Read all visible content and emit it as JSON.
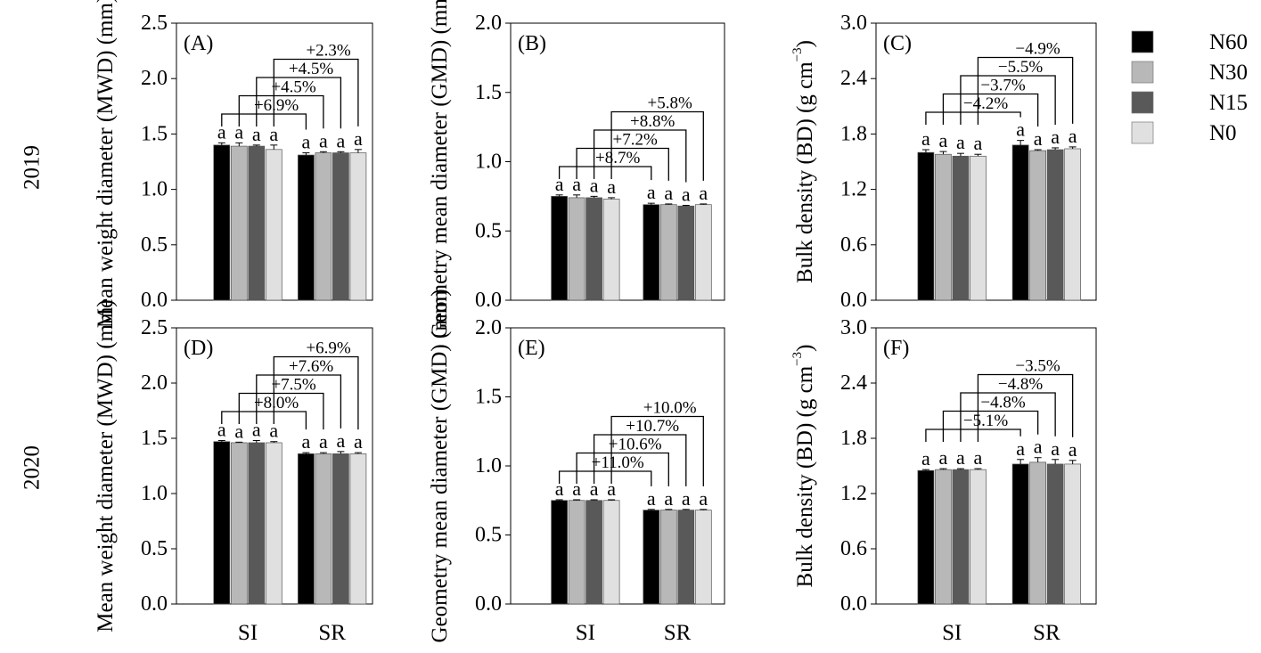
{
  "figure": {
    "row_labels": [
      "2019",
      "2020"
    ],
    "legend": [
      {
        "name": "N60",
        "color": "#000000"
      },
      {
        "name": "N30",
        "color": "#b8b8b8"
      },
      {
        "name": "N15",
        "color": "#595959"
      },
      {
        "name": "N0",
        "color": "#e0e0e0"
      }
    ]
  },
  "chart_data": [
    {
      "type": "bar",
      "panel": "(A)",
      "ylabel": "Mean weight diameter (MWD) (mm)",
      "categories": [
        "SI",
        "SR"
      ],
      "ylim": [
        0,
        2.5
      ],
      "yticks": [
        "0.0",
        "0.5",
        "1.0",
        "1.5",
        "2.0",
        "2.5"
      ],
      "series": [
        {
          "name": "N60",
          "values": [
            1.4,
            1.31
          ],
          "errors": [
            0.02,
            0.02
          ]
        },
        {
          "name": "N30",
          "values": [
            1.39,
            1.33
          ],
          "errors": [
            0.03,
            0.01
          ]
        },
        {
          "name": "N15",
          "values": [
            1.39,
            1.33
          ],
          "errors": [
            0.01,
            0.01
          ]
        },
        {
          "name": "N0",
          "values": [
            1.36,
            1.33
          ],
          "errors": [
            0.04,
            0.03
          ]
        }
      ],
      "letters": [
        [
          "a",
          "a",
          "a",
          "a"
        ],
        [
          "a",
          "a",
          "a",
          "a"
        ]
      ],
      "comparisons": [
        "+6.9%",
        "+4.5%",
        "+4.5%",
        "+2.3%"
      ],
      "show_xlabels": false
    },
    {
      "type": "bar",
      "panel": "(B)",
      "ylabel": "Geometry mean diameter (GMD) (mm)",
      "categories": [
        "SI",
        "SR"
      ],
      "ylim": [
        0,
        2.0
      ],
      "yticks": [
        "0.0",
        "0.5",
        "1.0",
        "1.5",
        "2.0"
      ],
      "series": [
        {
          "name": "N60",
          "values": [
            0.75,
            0.69
          ],
          "errors": [
            0.01,
            0.01
          ]
        },
        {
          "name": "N30",
          "values": [
            0.74,
            0.69
          ],
          "errors": [
            0.02,
            0.005
          ]
        },
        {
          "name": "N15",
          "values": [
            0.74,
            0.68
          ],
          "errors": [
            0.01,
            0.005
          ]
        },
        {
          "name": "N0",
          "values": [
            0.73,
            0.69
          ],
          "errors": [
            0.01,
            0.005
          ]
        }
      ],
      "letters": [
        [
          "a",
          "a",
          "a",
          "a"
        ],
        [
          "a",
          "a",
          "a",
          "a"
        ]
      ],
      "comparisons": [
        "+8.7%",
        "+7.2%",
        "+8.8%",
        "+5.8%"
      ],
      "show_xlabels": false
    },
    {
      "type": "bar",
      "panel": "(C)",
      "ylabel": "Bulk density (BD) (g cm",
      "ylabel_sup": "−3",
      "ylabel_end": ")",
      "categories": [
        "SI",
        "SR"
      ],
      "ylim": [
        0,
        3.0
      ],
      "yticks": [
        "0.0",
        "0.6",
        "1.2",
        "1.8",
        "2.4",
        "3.0"
      ],
      "series": [
        {
          "name": "N60",
          "values": [
            1.6,
            1.68
          ],
          "errors": [
            0.03,
            0.05
          ]
        },
        {
          "name": "N30",
          "values": [
            1.58,
            1.62
          ],
          "errors": [
            0.03,
            0.01
          ]
        },
        {
          "name": "N15",
          "values": [
            1.56,
            1.63
          ],
          "errors": [
            0.03,
            0.02
          ]
        },
        {
          "name": "N0",
          "values": [
            1.56,
            1.64
          ],
          "errors": [
            0.02,
            0.02
          ]
        }
      ],
      "letters": [
        [
          "a",
          "a",
          "a",
          "a"
        ],
        [
          "a",
          "a",
          "a",
          "a"
        ]
      ],
      "comparisons": [
        "−4.2%",
        "−3.7%",
        "−5.5%",
        "−4.9%"
      ],
      "show_xlabels": false
    },
    {
      "type": "bar",
      "panel": "(D)",
      "ylabel": "Mean weight diameter (MWD) (mm)",
      "categories": [
        "SI",
        "SR"
      ],
      "ylim": [
        0,
        2.5
      ],
      "yticks": [
        "0.0",
        "0.5",
        "1.0",
        "1.5",
        "2.0",
        "2.5"
      ],
      "series": [
        {
          "name": "N60",
          "values": [
            1.47,
            1.36
          ],
          "errors": [
            0.01,
            0.01
          ]
        },
        {
          "name": "N30",
          "values": [
            1.46,
            1.36
          ],
          "errors": [
            0.005,
            0.01
          ]
        },
        {
          "name": "N15",
          "values": [
            1.46,
            1.36
          ],
          "errors": [
            0.02,
            0.02
          ]
        },
        {
          "name": "N0",
          "values": [
            1.46,
            1.36
          ],
          "errors": [
            0.01,
            0.01
          ]
        }
      ],
      "letters": [
        [
          "a",
          "a",
          "a",
          "a"
        ],
        [
          "a",
          "a",
          "a",
          "a"
        ]
      ],
      "comparisons": [
        "+8.0%",
        "+7.5%",
        "+7.6%",
        "+6.9%"
      ],
      "show_xlabels": true
    },
    {
      "type": "bar",
      "panel": "(E)",
      "ylabel": "Geometry mean diameter (GMD) (mm)",
      "categories": [
        "SI",
        "SR"
      ],
      "ylim": [
        0,
        2.0
      ],
      "yticks": [
        "0.0",
        "0.5",
        "1.0",
        "1.5",
        "2.0"
      ],
      "series": [
        {
          "name": "N60",
          "values": [
            0.75,
            0.68
          ],
          "errors": [
            0.005,
            0.005
          ]
        },
        {
          "name": "N30",
          "values": [
            0.75,
            0.68
          ],
          "errors": [
            0.005,
            0.005
          ]
        },
        {
          "name": "N15",
          "values": [
            0.75,
            0.68
          ],
          "errors": [
            0.005,
            0.005
          ]
        },
        {
          "name": "N0",
          "values": [
            0.75,
            0.68
          ],
          "errors": [
            0.005,
            0.005
          ]
        }
      ],
      "letters": [
        [
          "a",
          "a",
          "a",
          "a"
        ],
        [
          "a",
          "a",
          "a",
          "a"
        ]
      ],
      "comparisons": [
        "+11.0%",
        "+10.6%",
        "+10.7%",
        "+10.0%"
      ],
      "show_xlabels": true
    },
    {
      "type": "bar",
      "panel": "(F)",
      "ylabel": "Bulk density (BD) (g cm",
      "ylabel_sup": "−3",
      "ylabel_end": ")",
      "categories": [
        "SI",
        "SR"
      ],
      "ylim": [
        0,
        3.0
      ],
      "yticks": [
        "0.0",
        "0.6",
        "1.2",
        "1.8",
        "2.4",
        "3.0"
      ],
      "series": [
        {
          "name": "N60",
          "values": [
            1.45,
            1.52
          ],
          "errors": [
            0.01,
            0.05
          ]
        },
        {
          "name": "N30",
          "values": [
            1.46,
            1.54
          ],
          "errors": [
            0.01,
            0.05
          ]
        },
        {
          "name": "N15",
          "values": [
            1.46,
            1.52
          ],
          "errors": [
            0.01,
            0.05
          ]
        },
        {
          "name": "N0",
          "values": [
            1.46,
            1.52
          ],
          "errors": [
            0.01,
            0.04
          ]
        }
      ],
      "letters": [
        [
          "a",
          "a",
          "a",
          "a"
        ],
        [
          "a",
          "a",
          "a",
          "a"
        ]
      ],
      "comparisons": [
        "−5.1%",
        "−4.8%",
        "−4.8%",
        "−3.5%"
      ],
      "show_xlabels": true
    }
  ]
}
